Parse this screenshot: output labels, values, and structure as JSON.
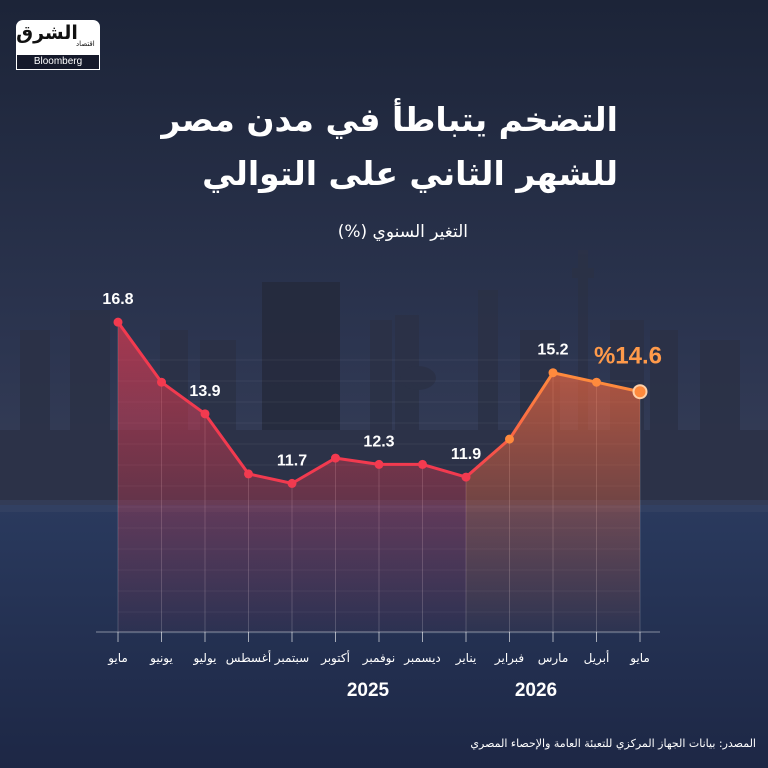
{
  "brand": {
    "name_ar": "الشرق",
    "sub_ar": "اقتصاد",
    "partner": "Bloomberg"
  },
  "colors": {
    "line_red": "#f23a4f",
    "line_orange": "#ff8a3d",
    "highlight_label": "#ff9a4a",
    "text": "#ffffff"
  },
  "chart_data": {
    "type": "area",
    "title": "التضخم يتباطأ في مدن مصر للشهر الثاني على التوالي",
    "title_lines": [
      "التضخم يتباطأ في مدن مصر",
      "للشهر الثاني على التوالي"
    ],
    "subtitle": "التغير السنوي (%)",
    "categories": [
      "مايو",
      "يونيو",
      "يوليو",
      "أغسطس",
      "سبتمبر",
      "أكتوبر",
      "نوفمبر",
      "ديسمبر",
      "يناير",
      "فبراير",
      "مارس",
      "أبريل",
      "مايو"
    ],
    "values": [
      16.8,
      14.9,
      13.9,
      12.0,
      11.7,
      12.5,
      12.3,
      12.3,
      11.9,
      13.1,
      15.2,
      14.9,
      14.6
    ],
    "data_labels": [
      {
        "index": 0,
        "text": "16.8"
      },
      {
        "index": 2,
        "text": "13.9"
      },
      {
        "index": 4,
        "text": "11.7"
      },
      {
        "index": 6,
        "text": "12.3"
      },
      {
        "index": 8,
        "text": "11.9"
      },
      {
        "index": 10,
        "text": "15.2"
      },
      {
        "index": 12,
        "text": "%14.6",
        "highlight": true
      }
    ],
    "years": [
      {
        "label": "2025",
        "from_index": 0,
        "to_index": 7
      },
      {
        "label": "2026",
        "from_index": 8,
        "to_index": 12
      }
    ],
    "ylim": [
      7,
      17.5
    ],
    "orientation": "right-to-left",
    "red_segment_end_index": 8,
    "grid": true,
    "xlabel": "",
    "ylabel": ""
  },
  "source": "المصدر: بيانات الجهاز المركزي للتعبئة العامة والإحصاء المصري"
}
